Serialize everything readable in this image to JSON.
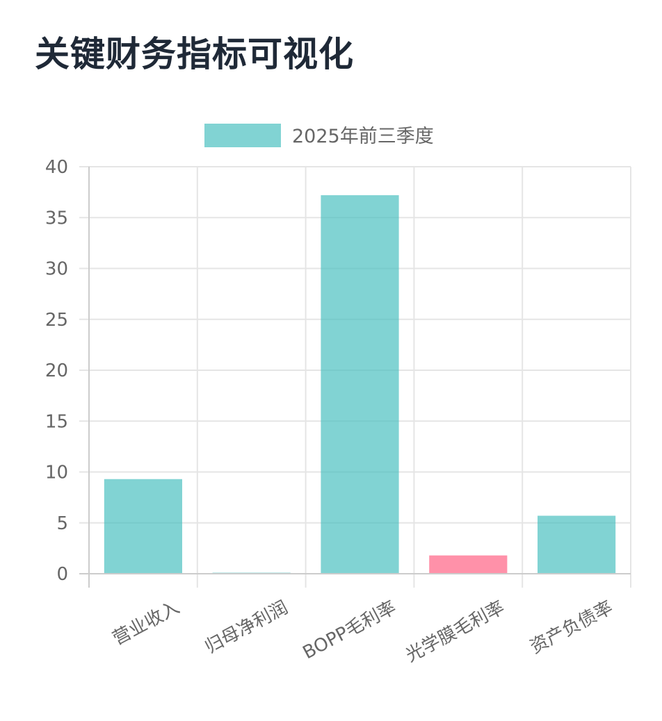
{
  "page": {
    "title": "关键财务指标可视化"
  },
  "chart_data": {
    "type": "bar",
    "categories": [
      "营业收入",
      "归母净利润",
      "BOPP毛利率",
      "光学膜毛利率",
      "资产负债率"
    ],
    "series": [
      {
        "name": "2025年前三季度",
        "values": [
          9.3,
          0.05,
          37.2,
          1.8,
          5.7
        ],
        "color": "#4bc0c0",
        "point_colors": [
          "#4bc0c0",
          "#4bc0c0",
          "#4bc0c0",
          "#ff6384",
          "#4bc0c0"
        ]
      }
    ],
    "ylim": [
      0,
      40
    ],
    "yticks": [
      0,
      5,
      10,
      15,
      20,
      25,
      30,
      35,
      40
    ],
    "grid": true,
    "legend_position": "top-center",
    "colors": {
      "axis": "#cccccc",
      "grid": "#e5e5e5",
      "tick_text": "#666666"
    }
  }
}
